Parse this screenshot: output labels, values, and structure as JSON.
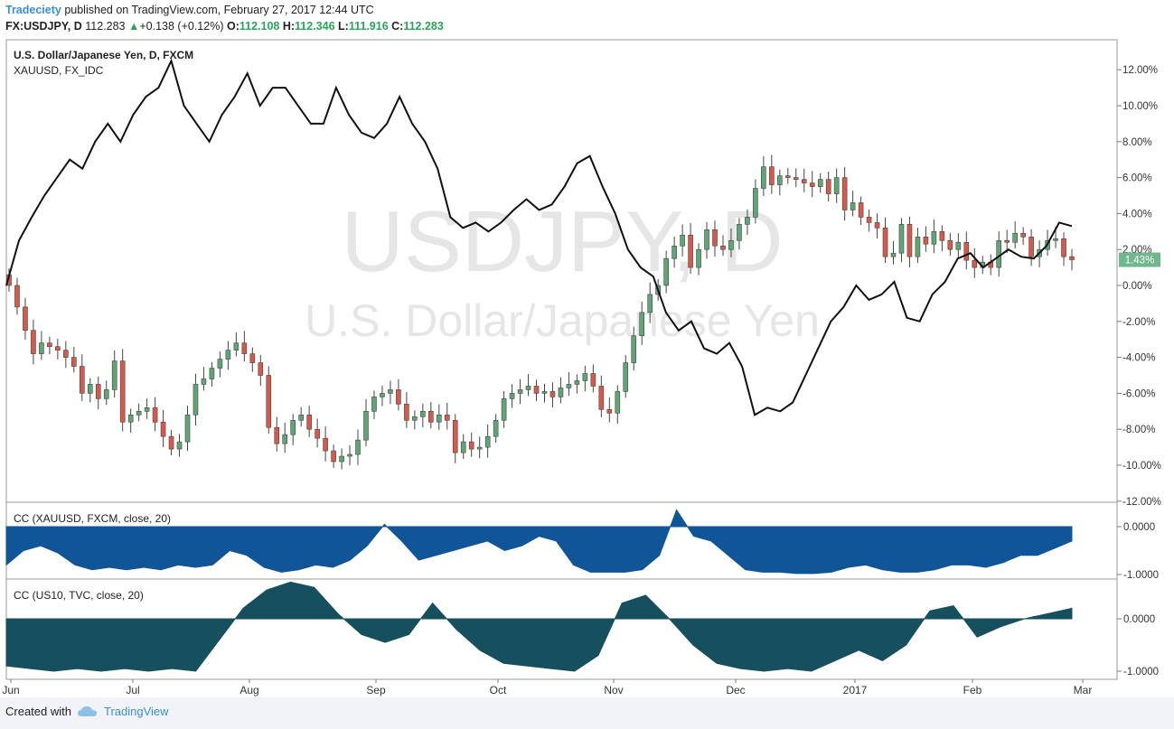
{
  "header": {
    "publisher": "Tradeciety",
    "published_text": "published on TradingView.com, February 27, 2017 12:44 UTC",
    "symbol": "FX:USDJPY, D",
    "last": "112.283",
    "change": "+0.138 (+0.12%)",
    "o_label": "O:",
    "o_value": "112.108",
    "h_label": "H:",
    "h_value": "112.346",
    "l_label": "L:",
    "l_value": "111.916",
    "c_label": "C:",
    "c_value": "112.283"
  },
  "footer": {
    "created_with": "Created with",
    "brand": "TradingView"
  },
  "colors": {
    "up": "#5fa677",
    "down": "#d6594c",
    "line": "#111111",
    "cc1": "#0f5597",
    "cc2": "#16505e",
    "badge": "#6fb78c"
  },
  "chart_data": [
    {
      "type": "candlestick",
      "title": "U.S. Dollar/Japanese Yen, D, FXCM",
      "watermark_symbol": "USDJPY, D",
      "watermark_name": "U.S. Dollar/Japanese Yen",
      "overlay_label": "XAUUSD, FX_IDC",
      "y_unit": "percent change",
      "ylim": [
        -12,
        13
      ],
      "yticks": [
        "12.00%",
        "10.00%",
        "8.00%",
        "6.00%",
        "4.00%",
        "2.00%",
        "0.00%",
        "-2.00%",
        "-4.00%",
        "-6.00%",
        "-8.00%",
        "-10.00%",
        "-12.00%"
      ],
      "last_badge": "1.43%",
      "xticks": [
        "Jun",
        "Jul",
        "Aug",
        "Sep",
        "Oct",
        "Nov",
        "Dec",
        "2017",
        "Feb",
        "Mar"
      ],
      "series": [
        {
          "name": "USDJPY",
          "kind": "candles",
          "close_pct": [
            0.0,
            -1.2,
            -2.5,
            -3.8,
            -3.2,
            -3.4,
            -3.6,
            -4.0,
            -4.5,
            -6.0,
            -5.5,
            -6.3,
            -5.8,
            -4.2,
            -7.6,
            -7.2,
            -7.0,
            -6.8,
            -7.6,
            -8.4,
            -9.1,
            -8.7,
            -7.2,
            -5.5,
            -5.2,
            -4.6,
            -4.1,
            -3.6,
            -3.2,
            -3.8,
            -4.3,
            -5.0,
            -7.9,
            -8.8,
            -8.3,
            -7.5,
            -7.2,
            -8.0,
            -8.5,
            -9.2,
            -9.8,
            -9.5,
            -9.4,
            -8.6,
            -7.0,
            -6.2,
            -6.0,
            -5.8,
            -6.6,
            -7.5,
            -7.3,
            -7.0,
            -7.6,
            -7.2,
            -7.5,
            -9.3,
            -8.7,
            -9.1,
            -9.0,
            -8.4,
            -7.5,
            -6.3,
            -6.0,
            -5.8,
            -5.6,
            -6.0,
            -5.9,
            -6.2,
            -5.7,
            -5.5,
            -5.3,
            -4.9,
            -5.6,
            -6.9,
            -7.1,
            -5.9,
            -4.3,
            -2.8,
            -1.5,
            -0.5,
            0.0,
            1.5,
            2.2,
            2.8,
            1.0,
            2.0,
            3.1,
            2.2,
            2.0,
            2.5,
            3.4,
            3.8,
            5.4,
            6.6,
            5.6,
            6.1,
            6.0,
            5.9,
            5.7,
            5.5,
            5.9,
            5.1,
            6.0,
            4.2,
            4.6,
            3.8,
            3.5,
            3.2,
            1.6,
            1.8,
            3.4,
            1.6,
            2.7,
            2.3,
            3.0,
            2.5,
            2.0,
            2.4,
            1.4,
            1.0,
            1.3,
            1.0,
            2.5,
            2.4,
            2.9,
            2.7,
            1.6,
            2.0,
            2.5,
            2.6,
            1.6,
            1.43
          ]
        },
        {
          "name": "XAUUSD",
          "kind": "line",
          "values_pct": [
            0.0,
            2.5,
            3.8,
            5.0,
            6.0,
            7.0,
            6.5,
            8.0,
            9.0,
            8.0,
            9.5,
            10.5,
            11.0,
            12.5,
            10.0,
            9.0,
            8.0,
            9.5,
            10.5,
            11.8,
            10.0,
            11.0,
            11.0,
            10.0,
            9.0,
            9.0,
            11.0,
            9.5,
            8.5,
            8.2,
            9.0,
            10.5,
            9.0,
            8.0,
            6.5,
            3.8,
            3.2,
            3.5,
            3.0,
            3.5,
            4.2,
            4.8,
            4.2,
            4.5,
            5.5,
            6.8,
            7.2,
            5.5,
            4.0,
            2.0,
            1.0,
            0.5,
            -1.5,
            -2.5,
            -2.0,
            -3.5,
            -3.8,
            -3.2,
            -4.5,
            -7.2,
            -6.8,
            -7.0,
            -6.5,
            -5.0,
            -3.5,
            -2.0,
            -1.2,
            0.0,
            -0.8,
            -0.5,
            0.2,
            -1.8,
            -2.0,
            -0.5,
            0.2,
            1.5,
            1.8,
            1.0,
            1.5,
            2.0,
            1.6,
            1.5,
            2.2,
            3.5,
            3.3
          ]
        }
      ]
    },
    {
      "type": "area",
      "title": "CC (XAUUSD, FXCM, close, 20)",
      "yticks": [
        "0.0000",
        "-1.0000"
      ],
      "ylim": [
        -1.05,
        0.3
      ],
      "values": [
        -0.8,
        -0.5,
        -0.4,
        -0.55,
        -0.8,
        -0.9,
        -0.85,
        -0.9,
        -0.85,
        -0.9,
        -0.8,
        -0.85,
        -0.8,
        -0.5,
        -0.6,
        -0.85,
        -0.95,
        -0.9,
        -0.8,
        -0.85,
        -0.7,
        -0.4,
        0.05,
        -0.3,
        -0.7,
        -0.6,
        -0.5,
        -0.4,
        -0.3,
        -0.5,
        -0.4,
        -0.2,
        -0.3,
        -0.8,
        -0.95,
        -0.95,
        -0.95,
        -0.9,
        -0.6,
        0.35,
        -0.2,
        -0.3,
        -0.6,
        -0.9,
        -0.95,
        -0.95,
        -0.98,
        -0.98,
        -0.95,
        -0.85,
        -0.8,
        -0.9,
        -0.95,
        -0.95,
        -0.9,
        -0.8,
        -0.8,
        -0.85,
        -0.75,
        -0.6,
        -0.6,
        -0.45,
        -0.3
      ]
    },
    {
      "type": "area",
      "title": "CC (US10, TVC, close, 20)",
      "yticks": [
        "0.0000",
        "-1.0000"
      ],
      "ylim": [
        -1.05,
        0.8
      ],
      "values": [
        -0.9,
        -0.95,
        -1.0,
        -0.95,
        -1.0,
        -0.95,
        -1.0,
        -0.95,
        -1.0,
        -0.4,
        0.2,
        0.55,
        0.7,
        0.6,
        0.1,
        -0.3,
        -0.45,
        -0.3,
        0.3,
        -0.2,
        -0.6,
        -0.85,
        -0.9,
        -0.95,
        -1.0,
        -0.7,
        0.3,
        0.45,
        0.0,
        -0.5,
        -0.85,
        -0.95,
        -1.0,
        -0.95,
        -1.0,
        -0.8,
        -0.6,
        -0.8,
        -0.5,
        0.15,
        0.25,
        -0.35,
        -0.15,
        0.0,
        0.1,
        0.2
      ]
    }
  ]
}
